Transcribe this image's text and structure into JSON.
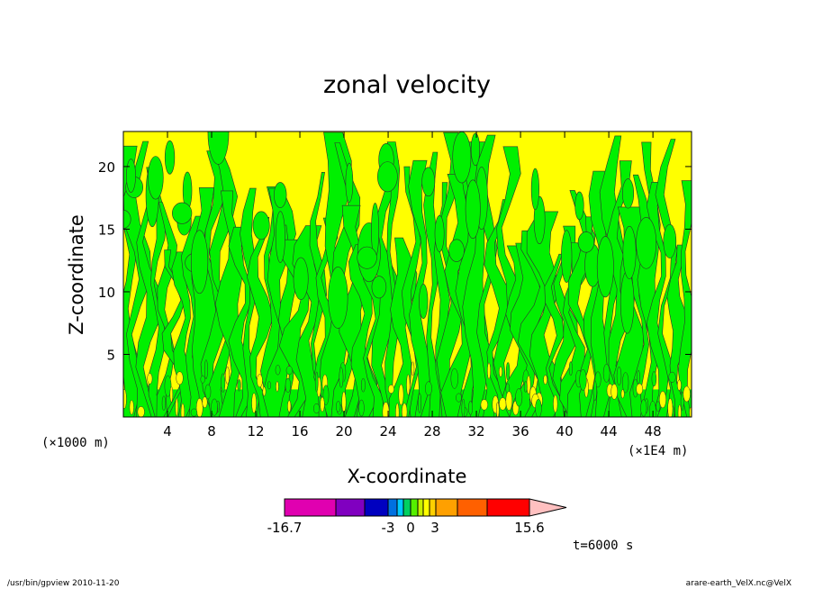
{
  "chart_data": {
    "type": "heatmap",
    "title": "zonal velocity",
    "xlabel": "X-coordinate",
    "ylabel": "Z-coordinate",
    "x_scale_label": "(×1E4 m)",
    "y_scale_label": "(×1000 m)",
    "xlim": [
      0,
      51.5
    ],
    "ylim": [
      0,
      22.8
    ],
    "x_ticks": [
      4,
      8,
      12,
      16,
      20,
      24,
      28,
      32,
      36,
      40,
      44,
      48
    ],
    "y_ticks": [
      5,
      10,
      15,
      20
    ],
    "legend": {
      "colors": [
        "#e000b0",
        "#8000c0",
        "#0000c0",
        "#0070e0",
        "#00c8ff",
        "#00d060",
        "#55f000",
        "#c8f000",
        "#ffff00",
        "#ffd000",
        "#ffa000",
        "#ff6000",
        "#ff0000",
        "#ff8080",
        "#ffc0c0"
      ],
      "tick_labels": [
        "-16.7",
        "-3",
        "0",
        "3",
        "15.6"
      ],
      "tick_values": [
        -16.7,
        -3,
        0,
        3,
        15.6
      ]
    },
    "dominant_fill_colors": [
      "#00f000",
      "#ffff00"
    ],
    "time_label": "t=6000 s"
  },
  "footer": {
    "left": "/usr/bin/gpview   2010-11-20",
    "right": "arare-earth_VelX.nc@VelX"
  }
}
